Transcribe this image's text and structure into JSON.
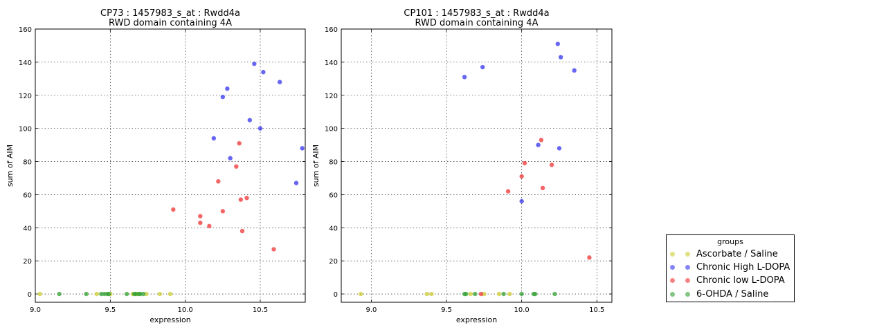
{
  "chart_data": [
    {
      "type": "scatter",
      "title": "CP73 : 1457983_s_at : Rwdd4a",
      "subtitle": "RWD domain containing 4A",
      "xlabel": "expression",
      "ylabel": "sum of AIM",
      "xlim": [
        9.0,
        10.8
      ],
      "ylim": [
        -5,
        160
      ],
      "xticks": [
        "9.0",
        "9.5",
        "10.0",
        "10.5"
      ],
      "yticks": [
        "0",
        "20",
        "40",
        "60",
        "80",
        "100",
        "120",
        "140",
        "160"
      ],
      "grid": true,
      "series": [
        {
          "name": "Ascorbate / Saline",
          "color": "#cccc33",
          "points": [
            [
              9.03,
              0
            ],
            [
              9.41,
              0
            ],
            [
              9.5,
              0
            ],
            [
              9.65,
              0
            ],
            [
              9.68,
              0
            ],
            [
              9.74,
              0
            ],
            [
              9.83,
              0
            ],
            [
              9.9,
              0
            ]
          ]
        },
        {
          "name": "Chronic High L-DOPA",
          "color": "#3333ee",
          "points": [
            [
              10.19,
              94
            ],
            [
              10.25,
              119
            ],
            [
              10.28,
              124
            ],
            [
              10.3,
              82
            ],
            [
              10.43,
              105
            ],
            [
              10.46,
              139
            ],
            [
              10.5,
              100
            ],
            [
              10.52,
              134
            ],
            [
              10.63,
              128
            ],
            [
              10.74,
              67
            ],
            [
              10.78,
              88
            ]
          ]
        },
        {
          "name": "Chronic low L-DOPA",
          "color": "#ee3333",
          "points": [
            [
              9.92,
              51
            ],
            [
              10.1,
              43
            ],
            [
              10.1,
              47
            ],
            [
              10.16,
              41
            ],
            [
              10.22,
              68
            ],
            [
              10.25,
              50
            ],
            [
              10.34,
              77
            ],
            [
              10.36,
              91
            ],
            [
              10.37,
              57
            ],
            [
              10.38,
              38
            ],
            [
              10.41,
              58
            ],
            [
              10.59,
              27
            ]
          ]
        },
        {
          "name": "6-OHDA / Saline",
          "color": "#33a033",
          "points": [
            [
              9.16,
              0
            ],
            [
              9.34,
              0
            ],
            [
              9.44,
              0
            ],
            [
              9.46,
              0
            ],
            [
              9.48,
              0
            ],
            [
              9.49,
              0
            ],
            [
              9.61,
              0
            ],
            [
              9.66,
              0
            ],
            [
              9.67,
              0
            ],
            [
              9.69,
              0
            ],
            [
              9.7,
              0
            ],
            [
              9.72,
              0
            ]
          ]
        }
      ]
    },
    {
      "type": "scatter",
      "title": "CP101 : 1457983_s_at : Rwdd4a",
      "subtitle": "RWD domain containing 4A",
      "xlabel": "expression",
      "ylabel": "sum of AIM",
      "xlim": [
        8.8,
        10.6
      ],
      "ylim": [
        -5,
        160
      ],
      "xticks": [
        "9.0",
        "9.5",
        "10.0",
        "10.5"
      ],
      "yticks": [
        "0",
        "20",
        "40",
        "60",
        "80",
        "100",
        "120",
        "140",
        "160"
      ],
      "grid": true,
      "series": [
        {
          "name": "Ascorbate / Saline",
          "color": "#cccc33",
          "points": [
            [
              8.93,
              0
            ],
            [
              9.37,
              0
            ],
            [
              9.4,
              0
            ],
            [
              9.66,
              0
            ],
            [
              9.75,
              0
            ],
            [
              9.85,
              0
            ],
            [
              9.92,
              0
            ]
          ]
        },
        {
          "name": "Chronic High L-DOPA",
          "color": "#3333ee",
          "points": [
            [
              9.62,
              131
            ],
            [
              9.74,
              137
            ],
            [
              10.0,
              56
            ],
            [
              10.11,
              90
            ],
            [
              10.24,
              151
            ],
            [
              10.25,
              88
            ],
            [
              10.26,
              143
            ],
            [
              10.35,
              135
            ]
          ]
        },
        {
          "name": "Chronic low L-DOPA",
          "color": "#ee3333",
          "points": [
            [
              9.73,
              0
            ],
            [
              9.91,
              62
            ],
            [
              10.0,
              71
            ],
            [
              10.02,
              79
            ],
            [
              10.13,
              93
            ],
            [
              10.14,
              64
            ],
            [
              10.2,
              78
            ],
            [
              10.45,
              22
            ]
          ]
        },
        {
          "name": "6-OHDA / Saline",
          "color": "#33a033",
          "points": [
            [
              9.62,
              0
            ],
            [
              9.63,
              0
            ],
            [
              9.69,
              0
            ],
            [
              9.88,
              0
            ],
            [
              10.0,
              0
            ],
            [
              10.08,
              0
            ],
            [
              10.09,
              0
            ],
            [
              10.22,
              0
            ]
          ]
        }
      ]
    }
  ],
  "legend": {
    "title": "groups",
    "placement": "lower-right",
    "items": [
      {
        "label": "Ascorbate / Saline",
        "color": "#cccc33"
      },
      {
        "label": "Chronic High L-DOPA",
        "color": "#3333ee"
      },
      {
        "label": "Chronic low L-DOPA",
        "color": "#ee3333"
      },
      {
        "label": "6-OHDA / Saline",
        "color": "#33a033"
      }
    ]
  }
}
